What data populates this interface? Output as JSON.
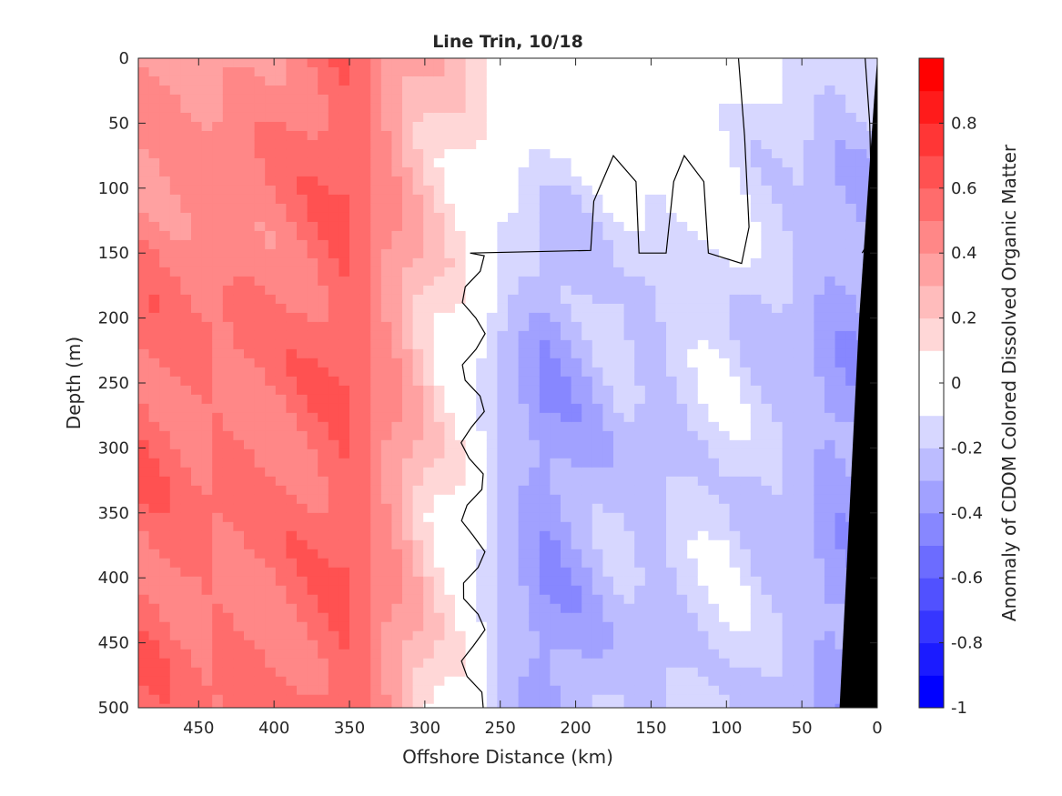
{
  "chart_data": {
    "type": "contour",
    "title": "Line Trin, 10/18",
    "xlabel": "Offshore Distance (km)",
    "ylabel": "Depth (m)",
    "colorbar_label": "Anomaly of CDOM Colored Dissolved Organic Matter",
    "xlim": [
      490,
      0
    ],
    "ylim": [
      500,
      0
    ],
    "x_reversed": true,
    "y_reversed": true,
    "x_ticks": [
      450,
      400,
      350,
      300,
      250,
      200,
      150,
      100,
      50,
      0
    ],
    "y_ticks": [
      0,
      50,
      100,
      150,
      200,
      250,
      300,
      350,
      400,
      450,
      500
    ],
    "colorbar_range": [
      -1,
      1
    ],
    "colorbar_ticks": [
      0.8,
      0.6,
      0.4,
      0.2,
      0,
      -0.2,
      -0.4,
      -0.6,
      -0.8,
      -1
    ],
    "contour_levels": [
      -1,
      -0.9,
      -0.8,
      -0.7,
      -0.6,
      -0.5,
      -0.4,
      -0.3,
      -0.2,
      -0.1,
      0,
      0.1,
      0.2,
      0.3,
      0.4,
      0.5,
      0.6,
      0.7,
      0.8,
      0.9,
      1
    ],
    "zero_contour_color": "#000000",
    "bathymetry_color": "#000000",
    "colormap": {
      "negative": "#0000ff",
      "zero": "#ffffff",
      "positive": "#ff0000"
    },
    "columns": [
      {
        "x": 480,
        "surface": 0.35,
        "deep": 0.55
      },
      {
        "x": 450,
        "surface": 0.35,
        "deep": 0.5
      },
      {
        "x": 420,
        "surface": 0.4,
        "deep": 0.5
      },
      {
        "x": 400,
        "surface": 0.45,
        "deep": 0.5
      },
      {
        "x": 370,
        "surface": 0.55,
        "deep": 0.55
      },
      {
        "x": 350,
        "surface": 0.6,
        "deep": 0.6
      },
      {
        "x": 330,
        "surface": 0.45,
        "deep": 0.45
      },
      {
        "x": 310,
        "surface": 0.3,
        "deep": 0.3
      },
      {
        "x": 290,
        "surface": 0.22,
        "deep": 0.12
      },
      {
        "x": 270,
        "surface": 0.15,
        "deep": 0.0
      },
      {
        "x": 250,
        "surface": 0.1,
        "deep": -0.22
      },
      {
        "x": 220,
        "surface": 0.05,
        "deep": -0.38
      },
      {
        "x": 200,
        "surface": 0.02,
        "deep": -0.32
      },
      {
        "x": 170,
        "surface": 0.05,
        "deep": -0.2
      },
      {
        "x": 150,
        "surface": 0.02,
        "deep": -0.25
      },
      {
        "x": 120,
        "surface": 0.08,
        "deep": -0.15
      },
      {
        "x": 100,
        "surface": 0.0,
        "deep": -0.12
      },
      {
        "x": 80,
        "surface": -0.1,
        "deep": -0.2
      },
      {
        "x": 50,
        "surface": -0.15,
        "deep": -0.25
      },
      {
        "x": 30,
        "surface": -0.2,
        "deep": -0.35
      }
    ]
  }
}
